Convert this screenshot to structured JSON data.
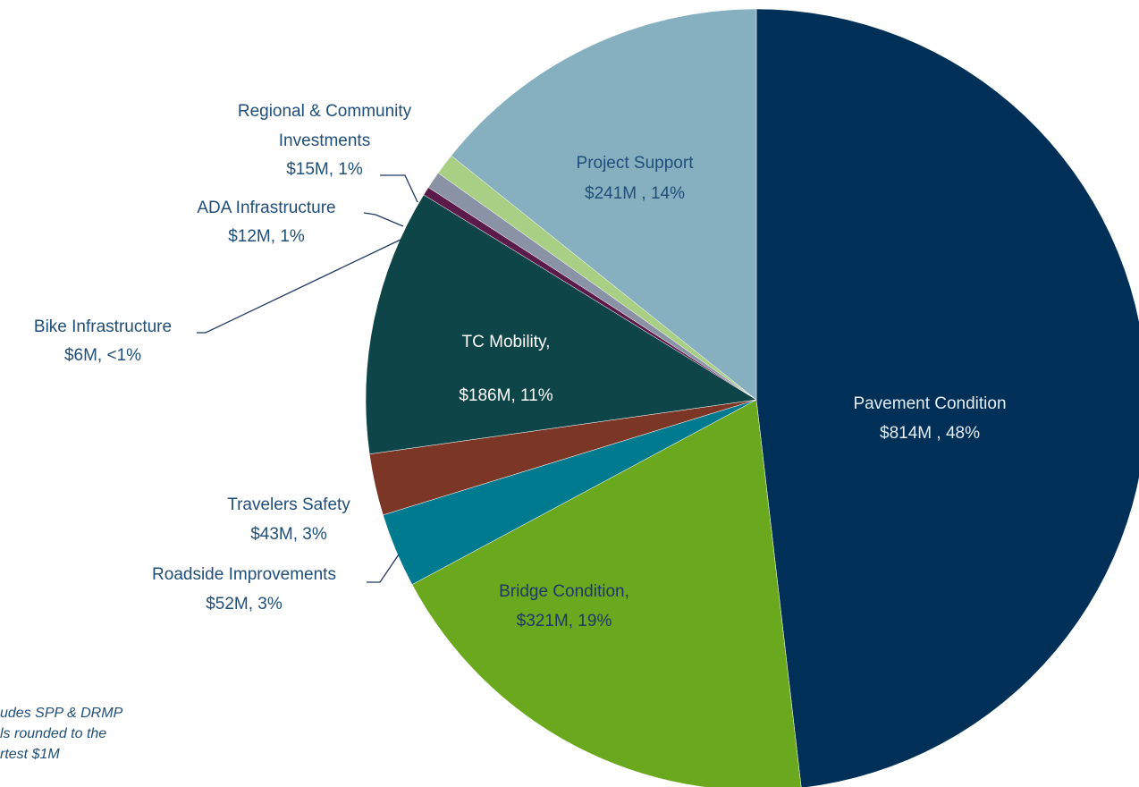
{
  "chart_data": {
    "type": "pie",
    "categories": [
      "Pavement Condition",
      "Bridge Condition,",
      "Roadside Improvements",
      "Travelers Safety",
      "TC Mobility,",
      "Bike Infrastructure",
      "ADA Infrastructure",
      "Regional & Community Investments",
      "Project Support"
    ],
    "values": [
      814,
      321,
      52,
      43,
      186,
      6,
      12,
      15,
      241
    ],
    "value_labels": [
      "$814M , 48%",
      "$321M, 19%",
      "$52M, 3%",
      "$43M, 3%",
      "$186M, 11%",
      "$6M, <1%",
      "$12M, 1%",
      "$15M, 1%",
      "$241M , 14%"
    ],
    "colors": [
      "#003057",
      "#6aa81e",
      "#007a8e",
      "#7b3625",
      "#0e4548",
      "#5a1a4a",
      "#8a93a5",
      "#a9cf85",
      "#86b0c0"
    ],
    "annotations": [
      "udes SPP & DRMP",
      "ls rounded to the",
      "rtest $1M"
    ]
  }
}
